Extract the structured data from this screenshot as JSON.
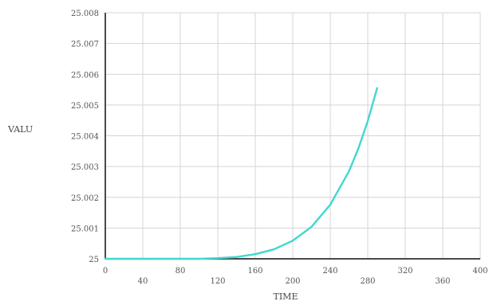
{
  "chart_data": {
    "type": "line",
    "xlabel": "TIME",
    "ylabel": "VALU",
    "xlim": [
      0,
      400
    ],
    "ylim": [
      25.0,
      25.008
    ],
    "x_ticks": [
      0,
      40,
      80,
      120,
      160,
      200,
      240,
      280,
      320,
      360,
      400
    ],
    "x_tick_labels": [
      "0",
      "40",
      "80",
      "120",
      "160",
      "200",
      "240",
      "280",
      "320",
      "360",
      "400"
    ],
    "y_ticks": [
      25.0,
      25.001,
      25.002,
      25.003,
      25.004,
      25.005,
      25.006,
      25.007,
      25.008
    ],
    "y_tick_labels": [
      "25",
      "25.001",
      "25.002",
      "25.003",
      "25.004",
      "25.005",
      "25.006",
      "25.007",
      "25.008"
    ],
    "grid": true,
    "series": [
      {
        "color": "#40d8cf",
        "x": [
          0,
          40,
          80,
          100,
          120,
          140,
          160,
          180,
          200,
          220,
          240,
          260,
          270,
          280,
          290
        ],
        "y": [
          25.0,
          25.0,
          25.0,
          25.0,
          25.00002,
          25.00006,
          25.00015,
          25.00031,
          25.00059,
          25.00104,
          25.00176,
          25.00285,
          25.00359,
          25.00448,
          25.00555
        ]
      }
    ],
    "colors": {
      "grid": "#d4d4d4",
      "axis": "#4a4a4a",
      "line": "#40d8cf"
    }
  }
}
